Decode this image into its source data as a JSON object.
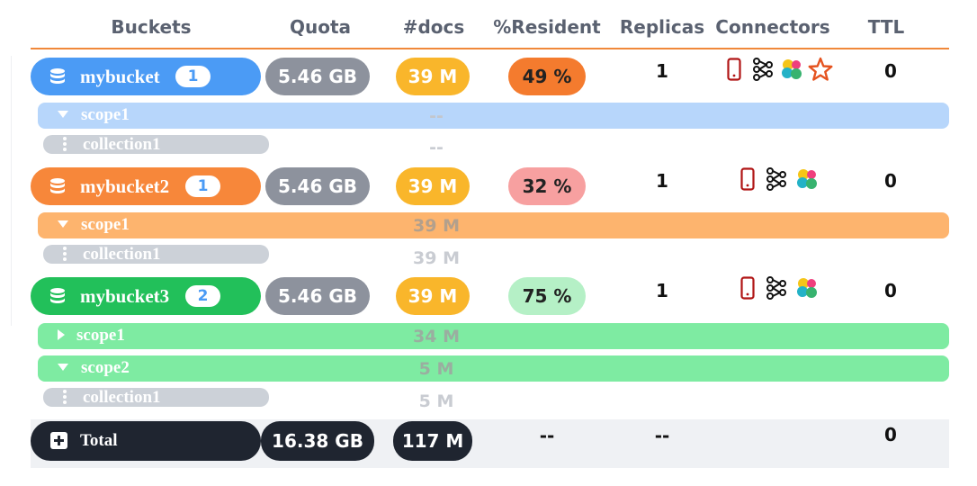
{
  "headers": {
    "buckets": "Buckets",
    "quota": "Quota",
    "docs": "#docs",
    "resident": "%Resident",
    "replicas": "Replicas",
    "connectors": "Connectors",
    "ttl": "TTL"
  },
  "buckets": [
    {
      "name": "mybucket",
      "badge": "1",
      "quota": "5.46 GB",
      "docs": "39 M",
      "resident": "49 %",
      "replicas": "1",
      "ttl": "0",
      "color": "#4b9bf5",
      "light_color": "#b7d6fb",
      "resident_bg": "#f47b2e",
      "connectors": [
        "mobile-icon",
        "network-icon",
        "elastic-icon",
        "star-icon"
      ],
      "scopes": [
        {
          "name": "scope1",
          "count": "--",
          "expanded": true,
          "collections": [
            {
              "name": "collection1",
              "count": "--"
            }
          ]
        }
      ]
    },
    {
      "name": "mybucket2",
      "badge": "1",
      "quota": "5.46 GB",
      "docs": "39 M",
      "resident": "32 %",
      "replicas": "1",
      "ttl": "0",
      "color": "#f7873a",
      "light_color": "#fdb46e",
      "resident_bg": "#f7a0a0",
      "connectors": [
        "mobile-icon",
        "network-icon",
        "elastic-icon"
      ],
      "scopes": [
        {
          "name": "scope1",
          "count": "39 M",
          "expanded": true,
          "collections": [
            {
              "name": "collection1",
              "count": "39 M"
            }
          ]
        }
      ]
    },
    {
      "name": "mybucket3",
      "badge": "2",
      "quota": "5.46 GB",
      "docs": "39 M",
      "resident": "75 %",
      "replicas": "1",
      "ttl": "0",
      "color": "#22c05a",
      "light_color": "#7eeba2",
      "resident_bg": "#b5f0c6",
      "connectors": [
        "mobile-icon",
        "network-icon",
        "elastic-icon"
      ],
      "scopes": [
        {
          "name": "scope1",
          "count": "34 M",
          "expanded": false,
          "collections": []
        },
        {
          "name": "scope2",
          "count": "5 M",
          "expanded": true,
          "collections": [
            {
              "name": "collection1",
              "count": "5 M"
            }
          ]
        }
      ]
    }
  ],
  "total": {
    "label": "Total",
    "quota": "16.38 GB",
    "docs": "117 M",
    "resident": "--",
    "replicas": "--",
    "ttl": "0"
  },
  "colors": {
    "header_rule": "#f0883a",
    "quota_pill": "#8d929d",
    "docs_pill": "#f9b62b",
    "total_pill": "#1f2530",
    "collection_bar": "#ccd1d8"
  }
}
